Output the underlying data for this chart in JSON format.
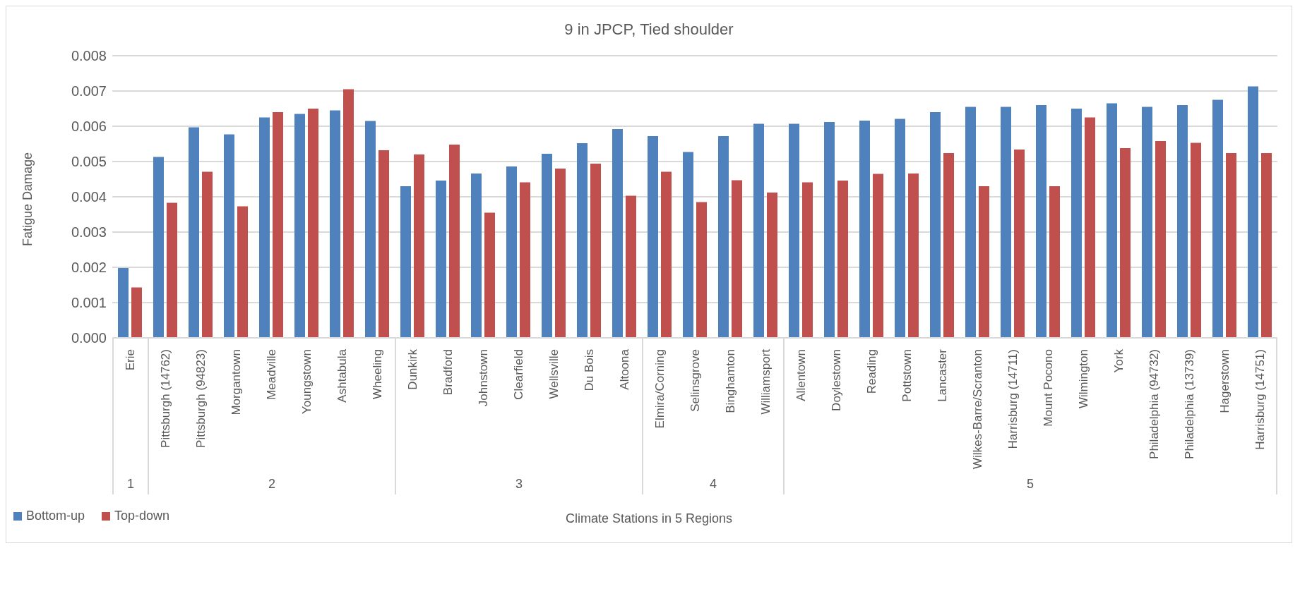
{
  "chart_data": {
    "type": "bar",
    "title": "9 in JPCP, Tied shoulder",
    "xlabel": "Climate Stations in 5 Regions",
    "ylabel": "Fatigue Damage",
    "categories": [
      "Erie",
      "Pittsburgh (14762)",
      "Pittsburgh (94823)",
      "Morgantown",
      "Meadville",
      "Youngstown",
      "Ashtabula",
      "Wheeling",
      "Dunkirk",
      "Bradford",
      "Johnstown",
      "Clearfield",
      "Wellsville",
      "Du Bois",
      "Altoona",
      "Elmira/Corning",
      "Selinsgrove",
      "Binghamton",
      "Williamsport",
      "Allentown",
      "Doylestown",
      "Reading",
      "Pottstown",
      "Lancaster",
      "Wilkes-Barre/Scranton",
      "Harrisburg (14711)",
      "Mount Pocono",
      "Wilmington",
      "York",
      "Philadelphia (94732)",
      "Philadelphia (13739)",
      "Hagerstown",
      "Harrisburg (14751)"
    ],
    "series": [
      {
        "name": "Bottom-up",
        "color": "#4f81bd",
        "values": [
          0.00198,
          0.00513,
          0.00597,
          0.00577,
          0.00625,
          0.00635,
          0.00645,
          0.00615,
          0.0043,
          0.00446,
          0.00466,
          0.00486,
          0.00522,
          0.00552,
          0.00592,
          0.00572,
          0.00527,
          0.00572,
          0.00607,
          0.00607,
          0.00612,
          0.00616,
          0.00621,
          0.0064,
          0.00655,
          0.00655,
          0.0066,
          0.0065,
          0.00665,
          0.00655,
          0.0066,
          0.00675,
          0.00713
        ]
      },
      {
        "name": "Top-down",
        "color": "#c0504d",
        "values": [
          0.00143,
          0.00383,
          0.00471,
          0.00373,
          0.0064,
          0.0065,
          0.00705,
          0.00532,
          0.0052,
          0.00548,
          0.00355,
          0.00441,
          0.0048,
          0.00494,
          0.00403,
          0.00471,
          0.00385,
          0.00447,
          0.00412,
          0.00441,
          0.00446,
          0.00465,
          0.00466,
          0.00524,
          0.0043,
          0.00534,
          0.0043,
          0.00625,
          0.00538,
          0.00558,
          0.00553,
          0.00524,
          0.00524
        ]
      }
    ],
    "ylim": [
      0,
      0.008
    ],
    "yticks": [
      {
        "value": 0,
        "label": "0.000"
      },
      {
        "value": 0.001,
        "label": "0.001"
      },
      {
        "value": 0.002,
        "label": "0.002"
      },
      {
        "value": 0.003,
        "label": "0.003"
      },
      {
        "value": 0.004,
        "label": "0.004"
      },
      {
        "value": 0.005,
        "label": "0.005"
      },
      {
        "value": 0.006,
        "label": "0.006"
      },
      {
        "value": 0.007,
        "label": "0.007"
      },
      {
        "value": 0.008,
        "label": "0.008"
      }
    ],
    "grid": "y",
    "legend": "bottom left",
    "annotations": [
      "1",
      "2",
      "3",
      "4",
      "5"
    ]
  }
}
